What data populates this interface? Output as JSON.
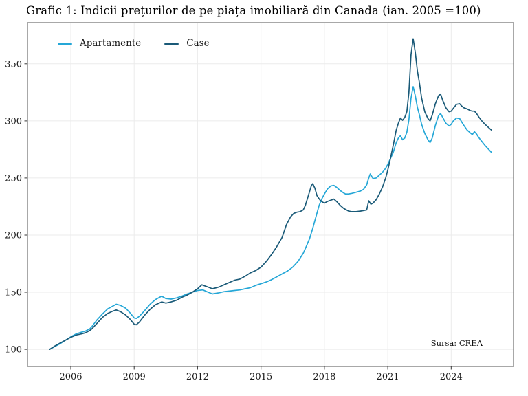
{
  "chart_data": {
    "type": "line",
    "title": "Grafic 1: Indicii prețurilor de pe piața imobiliară din Canada (ian. 2005 =100)",
    "source": "Sursa: CREA",
    "xlabel": "",
    "ylabel": "",
    "grid": true,
    "legend_position": "top-left-inside",
    "x_domain": [
      2003.95,
      2026.95
    ],
    "y_domain": [
      85,
      386
    ],
    "x_ticks": [
      2006,
      2009,
      2012,
      2015,
      2018,
      2021,
      2024
    ],
    "y_ticks": [
      100,
      150,
      200,
      250,
      300,
      350
    ],
    "series": [
      {
        "name": "Apartamente",
        "color": "#25a7d7",
        "points": [
          [
            2005.0,
            100
          ],
          [
            2005.25,
            102.5
          ],
          [
            2005.5,
            105
          ],
          [
            2005.75,
            108
          ],
          [
            2006.0,
            111
          ],
          [
            2006.25,
            113.5
          ],
          [
            2006.5,
            115
          ],
          [
            2006.7,
            116
          ],
          [
            2006.9,
            118
          ],
          [
            2007.0,
            120
          ],
          [
            2007.25,
            126
          ],
          [
            2007.5,
            131
          ],
          [
            2007.75,
            135.5
          ],
          [
            2008.0,
            138
          ],
          [
            2008.15,
            139.5
          ],
          [
            2008.35,
            138.5
          ],
          [
            2008.6,
            136
          ],
          [
            2008.8,
            132
          ],
          [
            2009.0,
            127.5
          ],
          [
            2009.1,
            127
          ],
          [
            2009.25,
            129
          ],
          [
            2009.5,
            134
          ],
          [
            2009.75,
            139.5
          ],
          [
            2010.0,
            143.5
          ],
          [
            2010.3,
            146.5
          ],
          [
            2010.5,
            144.5
          ],
          [
            2010.75,
            144
          ],
          [
            2011.0,
            145
          ],
          [
            2011.25,
            146.5
          ],
          [
            2011.5,
            148.5
          ],
          [
            2011.75,
            150
          ],
          [
            2012.0,
            151.5
          ],
          [
            2012.25,
            152
          ],
          [
            2012.5,
            150
          ],
          [
            2012.7,
            148.5
          ],
          [
            2013.0,
            149.5
          ],
          [
            2013.25,
            150.5
          ],
          [
            2013.5,
            151
          ],
          [
            2013.75,
            151.5
          ],
          [
            2014.0,
            152
          ],
          [
            2014.25,
            153
          ],
          [
            2014.5,
            154
          ],
          [
            2014.75,
            156
          ],
          [
            2015.0,
            157.5
          ],
          [
            2015.25,
            159
          ],
          [
            2015.5,
            161
          ],
          [
            2015.75,
            163.5
          ],
          [
            2016.0,
            166
          ],
          [
            2016.25,
            168.5
          ],
          [
            2016.5,
            172
          ],
          [
            2016.75,
            177
          ],
          [
            2017.0,
            184
          ],
          [
            2017.15,
            190.5
          ],
          [
            2017.3,
            197
          ],
          [
            2017.45,
            206
          ],
          [
            2017.6,
            216
          ],
          [
            2017.75,
            226
          ],
          [
            2017.9,
            232.5
          ],
          [
            2018.0,
            236
          ],
          [
            2018.15,
            240.5
          ],
          [
            2018.3,
            243
          ],
          [
            2018.45,
            243.5
          ],
          [
            2018.6,
            241.5
          ],
          [
            2018.75,
            239
          ],
          [
            2018.9,
            237
          ],
          [
            2019.0,
            236
          ],
          [
            2019.15,
            236
          ],
          [
            2019.3,
            236.5
          ],
          [
            2019.5,
            237.5
          ],
          [
            2019.7,
            238.5
          ],
          [
            2019.85,
            240
          ],
          [
            2020.0,
            244
          ],
          [
            2020.1,
            250
          ],
          [
            2020.17,
            253.5
          ],
          [
            2020.3,
            249.5
          ],
          [
            2020.45,
            250
          ],
          [
            2020.6,
            252.5
          ],
          [
            2020.75,
            255
          ],
          [
            2020.9,
            258.5
          ],
          [
            2021.0,
            262
          ],
          [
            2021.1,
            266
          ],
          [
            2021.25,
            272
          ],
          [
            2021.4,
            281
          ],
          [
            2021.5,
            285
          ],
          [
            2021.6,
            287
          ],
          [
            2021.7,
            283.5
          ],
          [
            2021.8,
            285
          ],
          [
            2021.9,
            290
          ],
          [
            2022.0,
            301
          ],
          [
            2022.1,
            320
          ],
          [
            2022.2,
            330
          ],
          [
            2022.3,
            322
          ],
          [
            2022.4,
            312
          ],
          [
            2022.5,
            305
          ],
          [
            2022.6,
            297
          ],
          [
            2022.75,
            289
          ],
          [
            2022.9,
            283.5
          ],
          [
            2023.0,
            281
          ],
          [
            2023.1,
            285
          ],
          [
            2023.25,
            296
          ],
          [
            2023.4,
            304.5
          ],
          [
            2023.5,
            306.5
          ],
          [
            2023.6,
            303
          ],
          [
            2023.75,
            298
          ],
          [
            2023.9,
            295.5
          ],
          [
            2024.0,
            297
          ],
          [
            2024.1,
            300
          ],
          [
            2024.25,
            302.5
          ],
          [
            2024.4,
            302
          ],
          [
            2024.5,
            299
          ],
          [
            2024.6,
            296
          ],
          [
            2024.75,
            292
          ],
          [
            2024.9,
            289.5
          ],
          [
            2025.0,
            288
          ],
          [
            2025.1,
            290.5
          ],
          [
            2025.2,
            288.5
          ],
          [
            2025.3,
            285.5
          ],
          [
            2025.45,
            282
          ],
          [
            2025.6,
            278.5
          ],
          [
            2025.75,
            275.5
          ],
          [
            2025.9,
            272.5
          ]
        ]
      },
      {
        "name": "Case",
        "color": "#1a5a78",
        "points": [
          [
            2005.0,
            100
          ],
          [
            2005.25,
            103
          ],
          [
            2005.5,
            105.5
          ],
          [
            2005.75,
            108
          ],
          [
            2006.0,
            110.5
          ],
          [
            2006.25,
            112.5
          ],
          [
            2006.5,
            113.5
          ],
          [
            2006.7,
            114.5
          ],
          [
            2006.9,
            116.5
          ],
          [
            2007.0,
            118
          ],
          [
            2007.25,
            123
          ],
          [
            2007.5,
            128
          ],
          [
            2007.75,
            131.5
          ],
          [
            2008.0,
            133.5
          ],
          [
            2008.15,
            134.5
          ],
          [
            2008.35,
            133
          ],
          [
            2008.6,
            130
          ],
          [
            2008.8,
            126.5
          ],
          [
            2009.0,
            122
          ],
          [
            2009.1,
            121.5
          ],
          [
            2009.25,
            124
          ],
          [
            2009.5,
            130
          ],
          [
            2009.75,
            135
          ],
          [
            2010.0,
            139
          ],
          [
            2010.3,
            141.5
          ],
          [
            2010.5,
            140.5
          ],
          [
            2010.75,
            141.5
          ],
          [
            2011.0,
            143
          ],
          [
            2011.25,
            145.5
          ],
          [
            2011.5,
            147.5
          ],
          [
            2011.75,
            150
          ],
          [
            2012.0,
            153
          ],
          [
            2012.2,
            156.5
          ],
          [
            2012.35,
            155.5
          ],
          [
            2012.5,
            154.5
          ],
          [
            2012.7,
            153
          ],
          [
            2013.0,
            154.5
          ],
          [
            2013.25,
            156.5
          ],
          [
            2013.5,
            158.5
          ],
          [
            2013.75,
            160.5
          ],
          [
            2014.0,
            161.5
          ],
          [
            2014.25,
            164
          ],
          [
            2014.5,
            167
          ],
          [
            2014.75,
            169
          ],
          [
            2015.0,
            172
          ],
          [
            2015.25,
            177
          ],
          [
            2015.5,
            183
          ],
          [
            2015.75,
            190
          ],
          [
            2016.0,
            198
          ],
          [
            2016.2,
            209
          ],
          [
            2016.4,
            216
          ],
          [
            2016.55,
            219
          ],
          [
            2016.7,
            220
          ],
          [
            2016.85,
            220.5
          ],
          [
            2017.0,
            222
          ],
          [
            2017.1,
            226
          ],
          [
            2017.25,
            235
          ],
          [
            2017.38,
            243
          ],
          [
            2017.45,
            245
          ],
          [
            2017.55,
            241
          ],
          [
            2017.65,
            234.5
          ],
          [
            2017.8,
            230.5
          ],
          [
            2017.9,
            229
          ],
          [
            2018.0,
            228
          ],
          [
            2018.15,
            229.5
          ],
          [
            2018.3,
            230.5
          ],
          [
            2018.45,
            231.5
          ],
          [
            2018.6,
            229
          ],
          [
            2018.75,
            226
          ],
          [
            2018.9,
            223.5
          ],
          [
            2019.0,
            222.5
          ],
          [
            2019.15,
            221
          ],
          [
            2019.3,
            220.5
          ],
          [
            2019.5,
            220.5
          ],
          [
            2019.7,
            221
          ],
          [
            2019.85,
            221.5
          ],
          [
            2020.0,
            222
          ],
          [
            2020.1,
            230
          ],
          [
            2020.2,
            227
          ],
          [
            2020.3,
            228
          ],
          [
            2020.45,
            231
          ],
          [
            2020.6,
            236
          ],
          [
            2020.75,
            242
          ],
          [
            2020.9,
            250
          ],
          [
            2021.0,
            257
          ],
          [
            2021.1,
            265
          ],
          [
            2021.25,
            278
          ],
          [
            2021.4,
            292
          ],
          [
            2021.5,
            298
          ],
          [
            2021.6,
            302.5
          ],
          [
            2021.7,
            300.5
          ],
          [
            2021.8,
            303
          ],
          [
            2021.9,
            308
          ],
          [
            2022.0,
            325
          ],
          [
            2022.1,
            358
          ],
          [
            2022.2,
            372
          ],
          [
            2022.3,
            360
          ],
          [
            2022.4,
            344
          ],
          [
            2022.5,
            333
          ],
          [
            2022.6,
            320
          ],
          [
            2022.75,
            308
          ],
          [
            2022.9,
            302
          ],
          [
            2023.0,
            300
          ],
          [
            2023.1,
            305
          ],
          [
            2023.25,
            315
          ],
          [
            2023.4,
            322
          ],
          [
            2023.5,
            323.5
          ],
          [
            2023.6,
            318
          ],
          [
            2023.75,
            311.5
          ],
          [
            2023.9,
            308
          ],
          [
            2024.0,
            308.5
          ],
          [
            2024.1,
            311
          ],
          [
            2024.25,
            314.5
          ],
          [
            2024.4,
            315
          ],
          [
            2024.5,
            313
          ],
          [
            2024.6,
            311.5
          ],
          [
            2024.75,
            310.5
          ],
          [
            2024.9,
            309
          ],
          [
            2025.0,
            308.5
          ],
          [
            2025.1,
            308.5
          ],
          [
            2025.2,
            306.5
          ],
          [
            2025.3,
            303.5
          ],
          [
            2025.45,
            300
          ],
          [
            2025.6,
            297
          ],
          [
            2025.75,
            294.5
          ],
          [
            2025.9,
            292
          ]
        ]
      }
    ]
  },
  "colors": {
    "apartamente": "#25a7d7",
    "case": "#1a5a78",
    "grid": "#ebebeb",
    "panel_border": "#6f6f6f",
    "tick": "#333333",
    "text": "#1a1a1a"
  }
}
